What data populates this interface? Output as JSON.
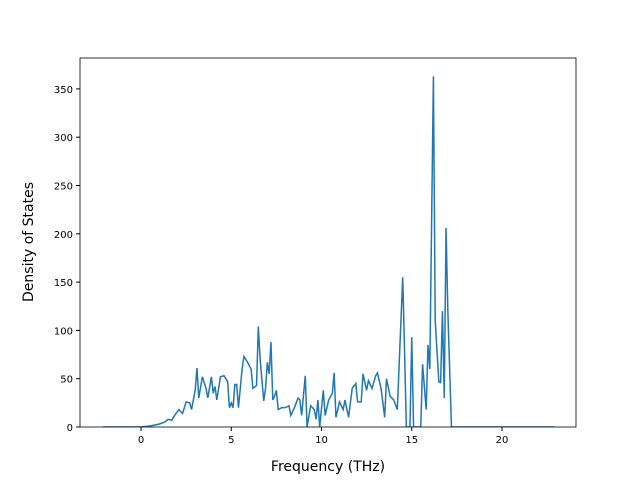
{
  "chart_data": {
    "type": "line",
    "xlabel": "Frequency (THz)",
    "ylabel": "Density of States",
    "x": [
      -2.1,
      0,
      0.5,
      1.0,
      1.3,
      1.5,
      1.7,
      1.9,
      2.1,
      2.3,
      2.5,
      2.7,
      2.8,
      3.0,
      3.1,
      3.2,
      3.4,
      3.6,
      3.7,
      3.9,
      4.0,
      4.1,
      4.2,
      4.4,
      4.6,
      4.8,
      4.9,
      5.0,
      5.1,
      5.2,
      5.3,
      5.4,
      5.6,
      5.7,
      5.9,
      6.1,
      6.2,
      6.4,
      6.5,
      6.6,
      6.8,
      6.9,
      7.0,
      7.1,
      7.2,
      7.3,
      7.4,
      7.5,
      7.6,
      7.8,
      8.0,
      8.2,
      8.3,
      8.5,
      8.7,
      8.8,
      8.9,
      9.1,
      9.2,
      9.4,
      9.6,
      9.7,
      9.8,
      9.9,
      10.1,
      10.2,
      10.4,
      10.6,
      10.7,
      10.8,
      11.0,
      11.2,
      11.3,
      11.5,
      11.7,
      11.9,
      12.0,
      12.2,
      12.3,
      12.5,
      12.6,
      12.8,
      13.0,
      13.1,
      13.3,
      13.5,
      13.6,
      13.8,
      14.0,
      14.2,
      14.5,
      14.6,
      14.7,
      14.9,
      15.0,
      15.1,
      15.5,
      15.6,
      15.8,
      15.9,
      16.0,
      16.2,
      16.3,
      16.5,
      16.6,
      16.7,
      16.8,
      16.9,
      17.0,
      17.2,
      17.5,
      22.9
    ],
    "series": [
      {
        "color": "#1f77b4",
        "values": [
          0,
          0,
          1,
          3,
          5,
          8,
          7,
          13,
          18,
          14,
          26,
          25,
          18,
          38,
          61,
          30,
          52,
          40,
          30,
          52,
          35,
          42,
          28,
          52,
          53,
          47,
          20,
          25,
          20,
          44,
          44,
          20,
          60,
          73,
          67,
          60,
          40,
          43,
          104,
          70,
          27,
          40,
          67,
          55,
          88,
          28,
          32,
          38,
          18,
          20,
          20,
          22,
          12,
          20,
          30,
          28,
          12,
          53,
          0,
          22,
          18,
          8,
          28,
          0,
          38,
          12,
          28,
          35,
          56,
          10,
          26,
          18,
          28,
          10,
          40,
          45,
          26,
          26,
          55,
          38,
          48,
          40,
          53,
          56,
          40,
          10,
          50,
          32,
          28,
          18,
          155,
          80,
          0,
          0,
          93,
          0,
          0,
          65,
          18,
          85,
          60,
          363,
          110,
          47,
          46,
          120,
          30,
          206,
          120,
          0,
          0,
          0
        ]
      }
    ],
    "xlim": [
      -3.38,
      24.1
    ],
    "ylim": [
      0,
      382
    ],
    "xticks": [
      0,
      5,
      10,
      15,
      20
    ],
    "yticks": [
      0,
      50,
      100,
      150,
      200,
      250,
      300,
      350
    ]
  }
}
